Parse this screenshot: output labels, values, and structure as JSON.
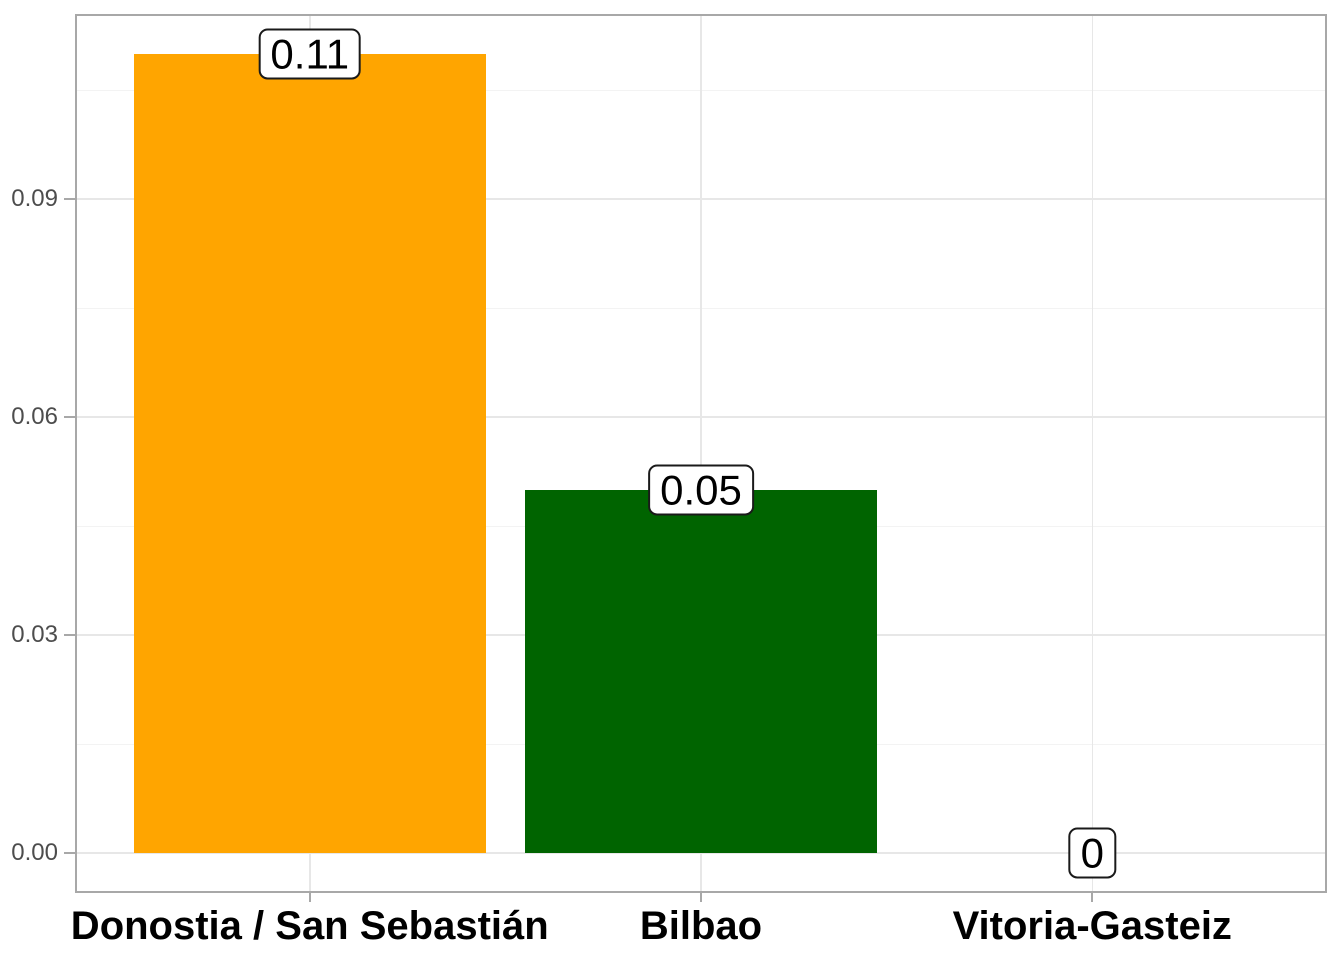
{
  "chart_data": {
    "type": "bar",
    "title": "",
    "xlabel": "",
    "ylabel": "",
    "categories": [
      "Donostia / San Sebastián",
      "Bilbao",
      "Vitoria-Gasteiz"
    ],
    "values": [
      0.11,
      0.05,
      0
    ],
    "bar_labels": [
      "0.11",
      "0.05",
      "0"
    ],
    "bar_colors": [
      "#ffa500",
      "#006400",
      null
    ],
    "ylim": [
      -0.0055,
      0.1155
    ],
    "yticks": [
      0,
      0.03,
      0.06,
      0.09
    ],
    "ytick_labels": [
      "0.00",
      "0.03",
      "0.06",
      "0.09"
    ],
    "yminor_breaks": [
      0.015,
      0.045,
      0.075,
      0.105
    ],
    "bar_width_fraction": 0.9,
    "grid": "horizontal major+minor, vertical major at category centers",
    "legend_position": "none"
  },
  "style": {
    "background": "#ffffff",
    "panel_border_color": "#a8a8a8",
    "major_grid_color": "#e7e7e7",
    "minor_grid_color": "#f3f3f3",
    "tick_color": "#a8a8a8",
    "ytick_text_color": "#4d4d4d",
    "xcat_text_color": "#000000",
    "value_label_bg": "#ffffff",
    "value_label_border": "#1a1a1a",
    "value_label_text_color": "#000000"
  }
}
